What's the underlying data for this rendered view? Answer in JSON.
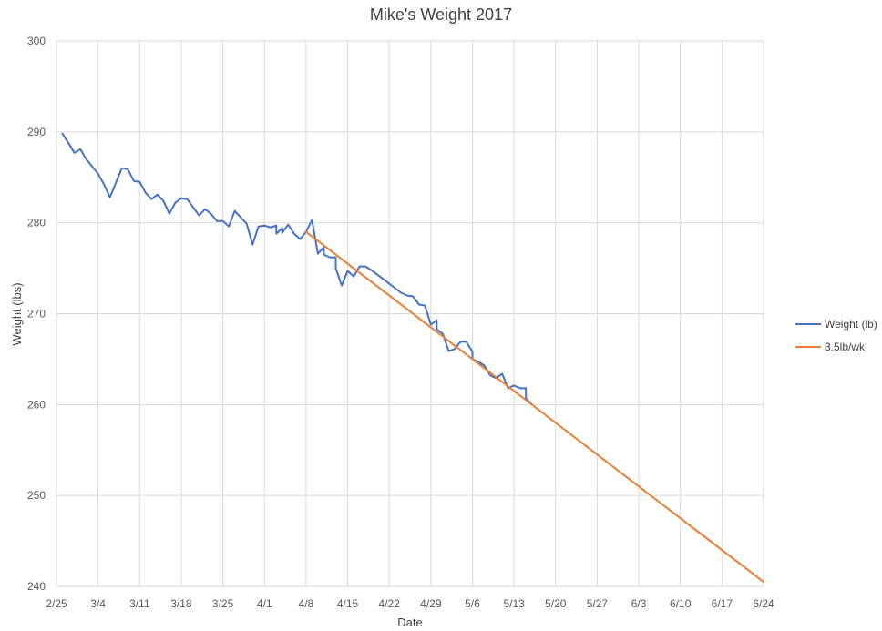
{
  "chart_data": {
    "type": "line",
    "title": "Mike's Weight 2017",
    "xlabel": "Date",
    "ylabel": "Weight (lbs)",
    "xlim": [
      "2017-02-25",
      "2017-06-24"
    ],
    "ylim": [
      240,
      300
    ],
    "x_tick_labels": [
      "2/25",
      "3/4",
      "3/11",
      "3/18",
      "3/25",
      "4/1",
      "4/8",
      "4/15",
      "4/22",
      "4/29",
      "5/6",
      "5/13",
      "5/20",
      "5/27",
      "6/3",
      "6/10",
      "6/17",
      "6/24"
    ],
    "y_tick_labels": [
      "240",
      "250",
      "260",
      "270",
      "280",
      "290",
      "300"
    ],
    "grid": true,
    "legend_position": "right",
    "series": [
      {
        "name": "Weight (lb)",
        "color": "#4472C4",
        "points": [
          [
            "2017-02-26",
            289.8
          ],
          [
            "2017-02-27",
            288.8
          ],
          [
            "2017-02-28",
            287.7
          ],
          [
            "2017-03-01",
            288.1
          ],
          [
            "2017-03-02",
            287.0
          ],
          [
            "2017-03-03",
            286.2
          ],
          [
            "2017-03-04",
            285.4
          ],
          [
            "2017-03-05",
            284.2
          ],
          [
            "2017-03-06",
            282.8
          ],
          [
            "2017-03-07",
            284.4
          ],
          [
            "2017-03-08",
            286.0
          ],
          [
            "2017-03-09",
            285.9
          ],
          [
            "2017-03-10",
            284.6
          ],
          [
            "2017-03-11",
            284.5
          ],
          [
            "2017-03-12",
            283.3
          ],
          [
            "2017-03-13",
            282.6
          ],
          [
            "2017-03-14",
            283.1
          ],
          [
            "2017-03-15",
            282.4
          ],
          [
            "2017-03-16",
            281.0
          ],
          [
            "2017-03-17",
            282.2
          ],
          [
            "2017-03-18",
            282.7
          ],
          [
            "2017-03-19",
            282.6
          ],
          [
            "2017-03-20",
            281.7
          ],
          [
            "2017-03-21",
            280.8
          ],
          [
            "2017-03-22",
            281.5
          ],
          [
            "2017-03-23",
            281.0
          ],
          [
            "2017-03-24",
            280.2
          ],
          [
            "2017-03-25",
            280.2
          ],
          [
            "2017-03-26",
            279.6
          ],
          [
            "2017-03-27",
            281.3
          ],
          [
            "2017-03-28",
            280.6
          ],
          [
            "2017-03-29",
            279.9
          ],
          [
            "2017-03-30",
            277.6
          ],
          [
            "2017-03-31",
            279.6
          ],
          [
            "2017-04-01",
            279.7
          ],
          [
            "2017-04-02",
            279.5
          ],
          [
            "2017-04-03",
            279.7
          ],
          [
            "2017-04-03",
            278.8
          ],
          [
            "2017-04-04",
            279.4
          ],
          [
            "2017-04-04",
            278.9
          ],
          [
            "2017-04-05",
            279.8
          ],
          [
            "2017-04-06",
            278.8
          ],
          [
            "2017-04-07",
            278.2
          ],
          [
            "2017-04-08",
            279.0
          ],
          [
            "2017-04-09",
            280.3
          ],
          [
            "2017-04-10",
            276.6
          ],
          [
            "2017-04-11",
            277.3
          ],
          [
            "2017-04-11",
            276.5
          ],
          [
            "2017-04-12",
            276.2
          ],
          [
            "2017-04-13",
            276.2
          ],
          [
            "2017-04-13",
            275.0
          ],
          [
            "2017-04-14",
            273.1
          ],
          [
            "2017-04-15",
            274.7
          ],
          [
            "2017-04-16",
            274.1
          ],
          [
            "2017-04-17",
            275.2
          ],
          [
            "2017-04-18",
            275.2
          ],
          [
            "2017-04-19",
            274.8
          ],
          [
            "2017-04-20",
            274.3
          ],
          [
            "2017-04-21",
            273.8
          ],
          [
            "2017-04-22",
            273.3
          ],
          [
            "2017-04-23",
            272.8
          ],
          [
            "2017-04-24",
            272.3
          ],
          [
            "2017-04-25",
            272.0
          ],
          [
            "2017-04-26",
            271.9
          ],
          [
            "2017-04-27",
            271.0
          ],
          [
            "2017-04-28",
            270.9
          ],
          [
            "2017-04-29",
            268.8
          ],
          [
            "2017-04-30",
            269.3
          ],
          [
            "2017-04-30",
            268.3
          ],
          [
            "2017-05-01",
            267.8
          ],
          [
            "2017-05-02",
            265.9
          ],
          [
            "2017-05-03",
            266.1
          ],
          [
            "2017-05-04",
            266.9
          ],
          [
            "2017-05-05",
            266.9
          ],
          [
            "2017-05-06",
            265.8
          ],
          [
            "2017-05-06",
            265.0
          ],
          [
            "2017-05-07",
            264.7
          ],
          [
            "2017-05-08",
            264.3
          ],
          [
            "2017-05-09",
            263.2
          ],
          [
            "2017-05-10",
            262.9
          ],
          [
            "2017-05-11",
            263.4
          ],
          [
            "2017-05-12",
            261.8
          ],
          [
            "2017-05-13",
            262.1
          ],
          [
            "2017-05-14",
            261.8
          ],
          [
            "2017-05-15",
            261.8
          ],
          [
            "2017-05-15",
            260.7
          ],
          [
            "2017-05-16",
            260.0
          ]
        ]
      },
      {
        "name": "3.5lb/wk",
        "color": "#ED7D31",
        "points": [
          [
            "2017-04-08",
            279.0
          ],
          [
            "2017-06-24",
            240.5
          ]
        ]
      }
    ]
  }
}
